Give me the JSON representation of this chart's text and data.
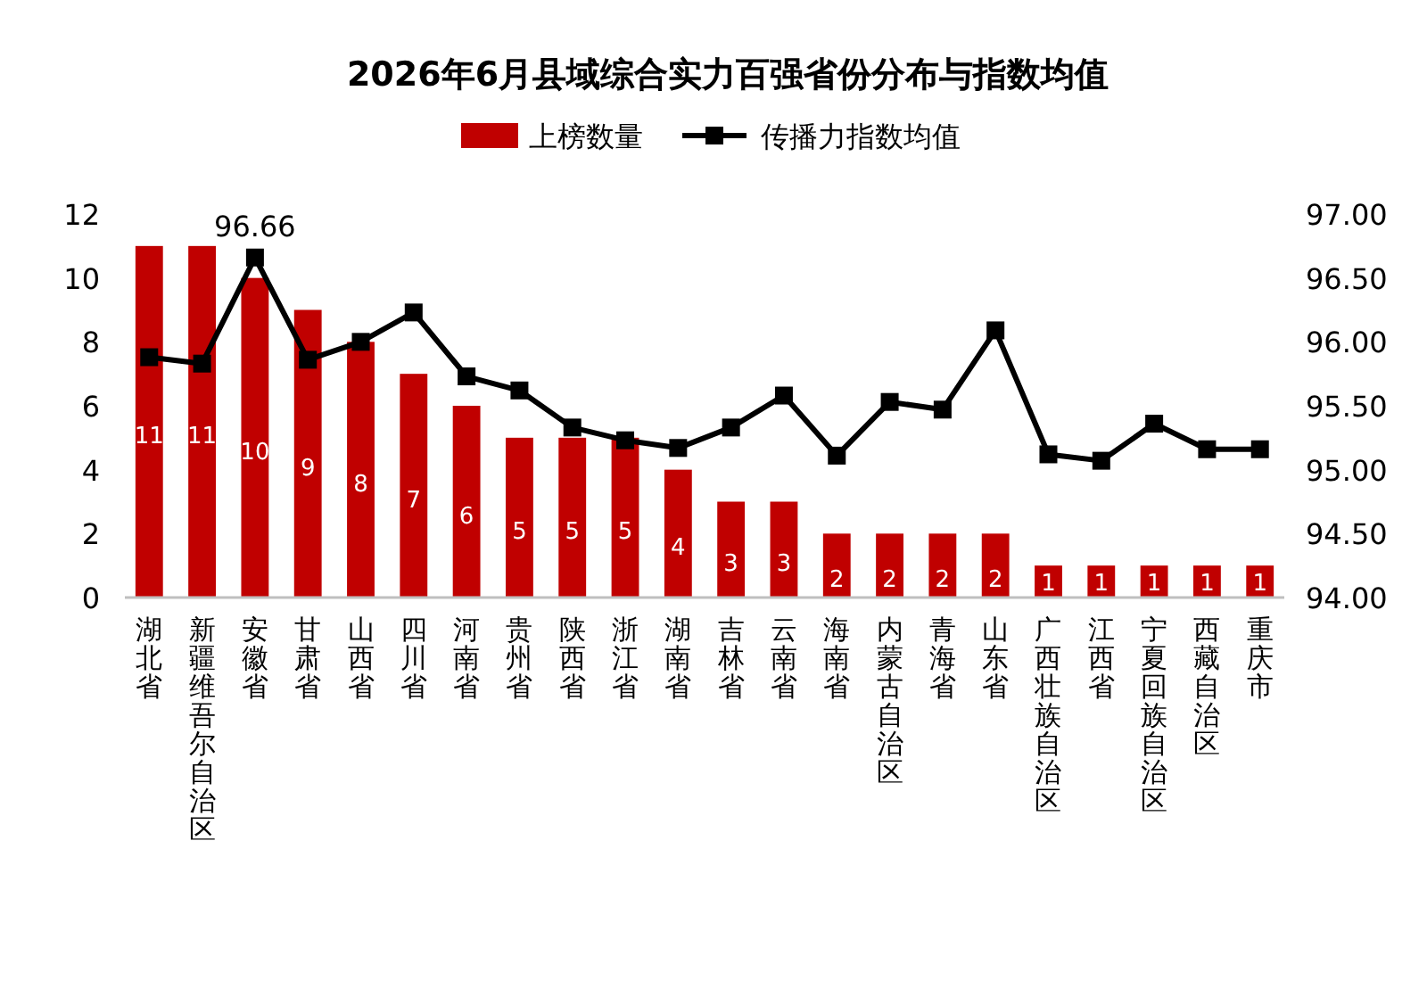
{
  "chart_data": {
    "type": "bar",
    "title": "2026年6月县域综合实力百强省份分布与指数均值",
    "categories": [
      "湖北省",
      "新疆维吾尔自治区",
      "安徽省",
      "甘肃省",
      "山西省",
      "四川省",
      "河南省",
      "贵州省",
      "陕西省",
      "浙江省",
      "湖南省",
      "吉林省",
      "云南省",
      "海南省",
      "内蒙古自治区",
      "青海省",
      "山东省",
      "广西壮族自治区",
      "江西省",
      "宁夏回族自治区",
      "西藏自治区",
      "重庆市"
    ],
    "series": [
      {
        "name": "上榜数量",
        "color": "#c00000",
        "data_labels": true,
        "values": [
          11,
          11,
          10,
          9,
          8,
          7,
          6,
          5,
          5,
          5,
          4,
          3,
          3,
          2,
          2,
          2,
          2,
          1,
          1,
          1,
          1,
          1
        ]
      },
      {
        "name": "传播力指数均值",
        "type": "line",
        "axis": "y2",
        "color": "#000000",
        "marker": "square",
        "values": [
          95.88,
          95.83,
          96.66,
          95.86,
          96.0,
          96.23,
          95.73,
          95.62,
          95.33,
          95.23,
          95.17,
          95.33,
          95.58,
          95.11,
          95.53,
          95.47,
          96.09,
          95.12,
          95.07,
          95.36,
          95.16,
          95.16
        ],
        "value_labels": [
          null,
          null,
          "96.66",
          null,
          null,
          null,
          null,
          null,
          null,
          null,
          null,
          null,
          null,
          null,
          null,
          null,
          null,
          null,
          null,
          null,
          null,
          null
        ]
      }
    ],
    "ylim": [
      0,
      12
    ],
    "yticks": [
      0,
      2,
      4,
      6,
      8,
      10,
      12
    ],
    "y2lim": [
      94,
      97
    ],
    "y2ticks": [
      {
        "value": 94,
        "label": "94.00"
      },
      {
        "value": 94.5,
        "label": "94.50"
      },
      {
        "value": 95,
        "label": "95.00"
      },
      {
        "value": 95.5,
        "label": "95.50"
      },
      {
        "value": 96,
        "label": "96.00"
      },
      {
        "value": 96.5,
        "label": "96.50"
      },
      {
        "value": 97,
        "label": "97.00"
      }
    ],
    "legend": "top",
    "grid": false
  }
}
